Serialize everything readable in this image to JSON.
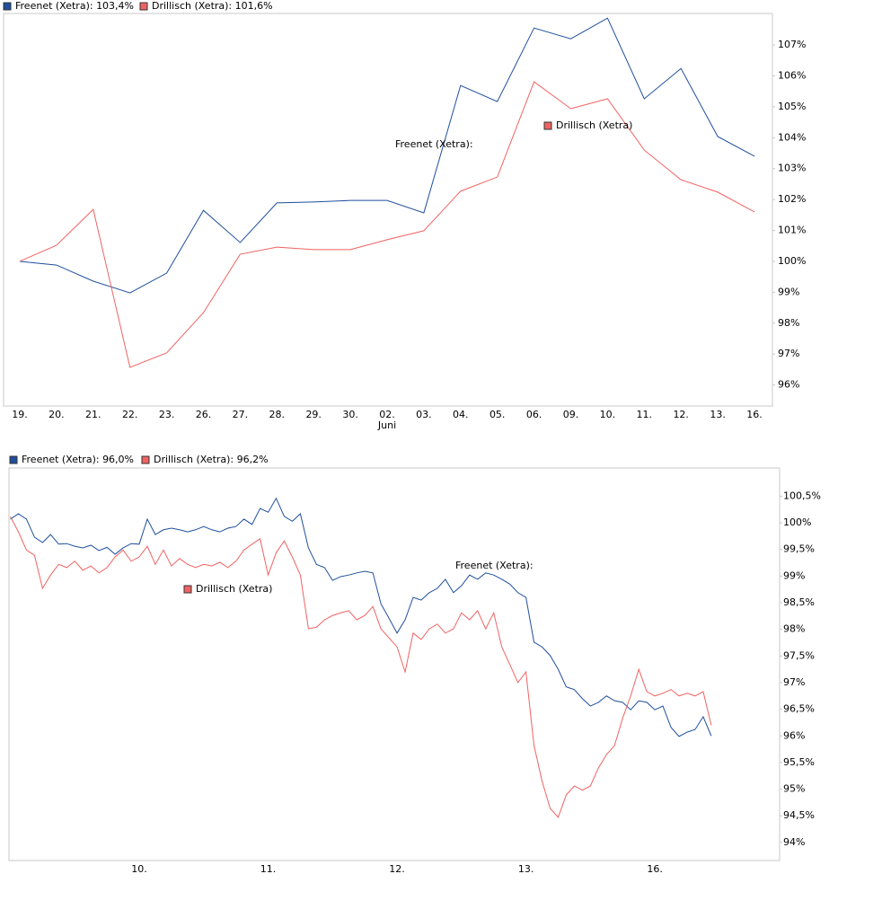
{
  "chart_data": [
    {
      "type": "line",
      "categories": [
        "19.",
        "20.",
        "21.",
        "22.",
        "23.",
        "26.",
        "27.",
        "28.",
        "29.",
        "30.",
        "02.",
        "03.",
        "04.",
        "05.",
        "06.",
        "09.",
        "10.",
        "11.",
        "12.",
        "13.",
        "16."
      ],
      "xlabel": "Juni",
      "series": [
        {
          "name": "Freenet (Xetra): 103,4%",
          "color": "#1f4f9e",
          "values": [
            100.0,
            99.88,
            99.36,
            98.98,
            99.62,
            101.65,
            100.61,
            101.89,
            101.92,
            101.97,
            101.97,
            101.57,
            105.69,
            105.17,
            107.55,
            107.2,
            107.87,
            105.26,
            106.24,
            104.04,
            103.4
          ]
        },
        {
          "name": "Drillisch (Xetra): 101,6%",
          "color": "#f06262",
          "values": [
            100.0,
            100.52,
            101.68,
            96.57,
            97.04,
            98.34,
            100.23,
            100.46,
            100.38,
            100.38,
            100.7,
            100.99,
            102.27,
            102.73,
            105.81,
            104.94,
            105.26,
            103.6,
            102.64,
            102.24,
            101.6
          ]
        }
      ],
      "annotations": [
        "Freenet (Xetra):",
        "Drillisch (Xetra)"
      ],
      "ylim": [
        95.32,
        108.02
      ],
      "yticks": [
        {
          "value": 96,
          "label": "96%"
        },
        {
          "value": 97,
          "label": "97%"
        },
        {
          "value": 98,
          "label": "98%"
        },
        {
          "value": 99,
          "label": "99%"
        },
        {
          "value": 100,
          "label": "100%"
        },
        {
          "value": 101,
          "label": "101%"
        },
        {
          "value": 102,
          "label": "102%"
        },
        {
          "value": 103,
          "label": "103%"
        },
        {
          "value": 104,
          "label": "104%"
        },
        {
          "value": 105,
          "label": "105%"
        },
        {
          "value": 106,
          "label": "106%"
        },
        {
          "value": 107,
          "label": "107%"
        }
      ],
      "grid": false
    },
    {
      "type": "line",
      "categories": [
        null,
        null,
        null,
        null,
        null,
        null,
        null,
        null,
        null,
        null,
        null,
        null,
        null,
        null,
        null,
        null,
        "10.",
        null,
        null,
        null,
        null,
        null,
        null,
        null,
        null,
        null,
        null,
        null,
        null,
        null,
        null,
        null,
        "11.",
        null,
        null,
        null,
        null,
        null,
        null,
        null,
        null,
        null,
        null,
        null,
        null,
        null,
        null,
        null,
        "12.",
        null,
        null,
        null,
        null,
        null,
        null,
        null,
        null,
        null,
        null,
        null,
        null,
        null,
        null,
        null,
        "13.",
        null,
        null,
        null,
        null,
        null,
        null,
        null,
        null,
        null,
        null,
        null,
        null,
        null,
        null,
        null,
        "16.",
        null,
        null,
        null,
        null,
        null,
        null,
        null
      ],
      "series": [
        {
          "name": "Freenet (Xetra): 96,0%",
          "color": "#1f4f9e",
          "values": [
            100.07,
            100.17,
            100.07,
            99.73,
            99.63,
            99.78,
            99.6,
            99.61,
            99.56,
            99.53,
            99.58,
            99.48,
            99.54,
            99.41,
            99.53,
            99.61,
            99.6,
            100.07,
            99.78,
            99.87,
            99.9,
            99.87,
            99.83,
            99.87,
            99.93,
            99.87,
            99.83,
            99.9,
            99.93,
            100.07,
            99.97,
            100.27,
            100.2,
            100.46,
            100.12,
            100.03,
            100.17,
            99.53,
            99.22,
            99.16,
            98.92,
            98.99,
            99.02,
            99.06,
            99.09,
            99.06,
            98.48,
            98.21,
            97.93,
            98.18,
            98.6,
            98.55,
            98.69,
            98.77,
            98.94,
            98.69,
            98.82,
            99.02,
            98.94,
            99.06,
            99.02,
            98.94,
            98.85,
            98.69,
            98.6,
            97.76,
            97.67,
            97.51,
            97.25,
            96.92,
            96.87,
            96.7,
            96.56,
            96.63,
            96.75,
            96.66,
            96.63,
            96.49,
            96.66,
            96.63,
            96.49,
            96.56,
            96.16,
            95.99,
            96.07,
            96.12,
            96.36,
            96.0
          ]
        },
        {
          "name": "Drillisch (Xetra): 96,2%",
          "color": "#f06262",
          "values": [
            100.12,
            99.83,
            99.49,
            99.39,
            98.77,
            99.02,
            99.22,
            99.16,
            99.28,
            99.11,
            99.19,
            99.06,
            99.16,
            99.36,
            99.49,
            99.28,
            99.36,
            99.56,
            99.22,
            99.49,
            99.19,
            99.33,
            99.22,
            99.16,
            99.22,
            99.19,
            99.26,
            99.16,
            99.28,
            99.49,
            99.6,
            99.7,
            99.02,
            99.44,
            99.66,
            99.36,
            99.02,
            98.01,
            98.04,
            98.18,
            98.26,
            98.31,
            98.35,
            98.18,
            98.26,
            98.43,
            98.01,
            97.84,
            97.67,
            97.2,
            97.93,
            97.81,
            98.01,
            98.1,
            97.93,
            98.01,
            98.31,
            98.18,
            98.35,
            98.01,
            98.31,
            97.67,
            97.34,
            97.0,
            97.2,
            95.82,
            95.15,
            94.64,
            94.47,
            94.89,
            95.06,
            94.98,
            95.06,
            95.4,
            95.65,
            95.82,
            96.33,
            96.75,
            97.25,
            96.83,
            96.75,
            96.8,
            96.87,
            96.75,
            96.8,
            96.75,
            96.83,
            96.2
          ]
        }
      ],
      "annotations": [
        "Freenet (Xetra):",
        "Drillisch (Xetra)"
      ],
      "ylim": [
        93.66,
        101.03
      ],
      "yticks": [
        {
          "value": 94,
          "label": "94%"
        },
        {
          "value": 94.5,
          "label": "94,5%"
        },
        {
          "value": 95,
          "label": "95%"
        },
        {
          "value": 95.5,
          "label": "95,5%"
        },
        {
          "value": 96,
          "label": "96%"
        },
        {
          "value": 96.5,
          "label": "96,5%"
        },
        {
          "value": 97,
          "label": "97%"
        },
        {
          "value": 97.5,
          "label": "97,5%"
        },
        {
          "value": 98,
          "label": "98%"
        },
        {
          "value": 98.5,
          "label": "98,5%"
        },
        {
          "value": 99,
          "label": "99%"
        },
        {
          "value": 99.5,
          "label": "99,5%"
        },
        {
          "value": 100,
          "label": "100%"
        },
        {
          "value": 100.5,
          "label": "100,5%"
        }
      ],
      "grid": false
    }
  ]
}
